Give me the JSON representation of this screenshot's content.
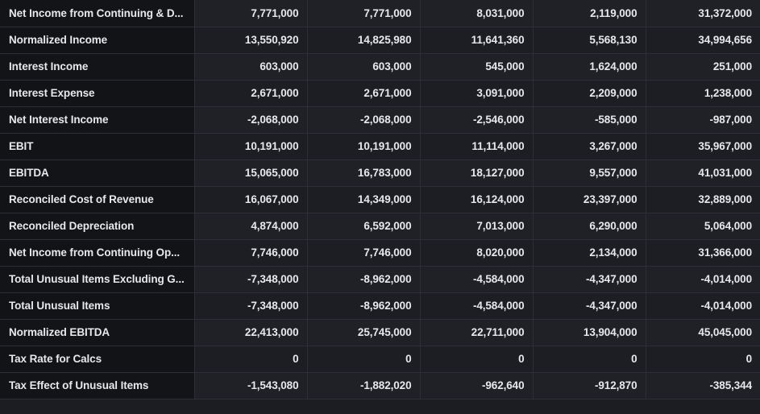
{
  "table": {
    "rows": [
      {
        "label": "Net Income from Continuing & D...",
        "values": [
          "7,771,000",
          "7,771,000",
          "8,031,000",
          "2,119,000",
          "31,372,000"
        ]
      },
      {
        "label": "Normalized Income",
        "values": [
          "13,550,920",
          "14,825,980",
          "11,641,360",
          "5,568,130",
          "34,994,656"
        ]
      },
      {
        "label": "Interest Income",
        "values": [
          "603,000",
          "603,000",
          "545,000",
          "1,624,000",
          "251,000"
        ]
      },
      {
        "label": "Interest Expense",
        "values": [
          "2,671,000",
          "2,671,000",
          "3,091,000",
          "2,209,000",
          "1,238,000"
        ]
      },
      {
        "label": "Net Interest Income",
        "values": [
          "-2,068,000",
          "-2,068,000",
          "-2,546,000",
          "-585,000",
          "-987,000"
        ]
      },
      {
        "label": "EBIT",
        "values": [
          "10,191,000",
          "10,191,000",
          "11,114,000",
          "3,267,000",
          "35,967,000"
        ]
      },
      {
        "label": "EBITDA",
        "values": [
          "15,065,000",
          "16,783,000",
          "18,127,000",
          "9,557,000",
          "41,031,000"
        ]
      },
      {
        "label": "Reconciled Cost of Revenue",
        "values": [
          "16,067,000",
          "14,349,000",
          "16,124,000",
          "23,397,000",
          "32,889,000"
        ]
      },
      {
        "label": "Reconciled Depreciation",
        "values": [
          "4,874,000",
          "6,592,000",
          "7,013,000",
          "6,290,000",
          "5,064,000"
        ]
      },
      {
        "label": "Net Income from Continuing Op...",
        "values": [
          "7,746,000",
          "7,746,000",
          "8,020,000",
          "2,134,000",
          "31,366,000"
        ]
      },
      {
        "label": "Total Unusual Items Excluding G...",
        "values": [
          "-7,348,000",
          "-8,962,000",
          "-4,584,000",
          "-4,347,000",
          "-4,014,000"
        ]
      },
      {
        "label": "Total Unusual Items",
        "values": [
          "-7,348,000",
          "-8,962,000",
          "-4,584,000",
          "-4,347,000",
          "-4,014,000"
        ]
      },
      {
        "label": "Normalized EBITDA",
        "values": [
          "22,413,000",
          "25,745,000",
          "22,711,000",
          "13,904,000",
          "45,045,000"
        ]
      },
      {
        "label": "Tax Rate for Calcs",
        "values": [
          "0",
          "0",
          "0",
          "0",
          "0"
        ]
      },
      {
        "label": "Tax Effect of Unusual Items",
        "values": [
          "-1,543,080",
          "-1,882,020",
          "-962,640",
          "-912,870",
          "-385,344"
        ]
      }
    ]
  }
}
